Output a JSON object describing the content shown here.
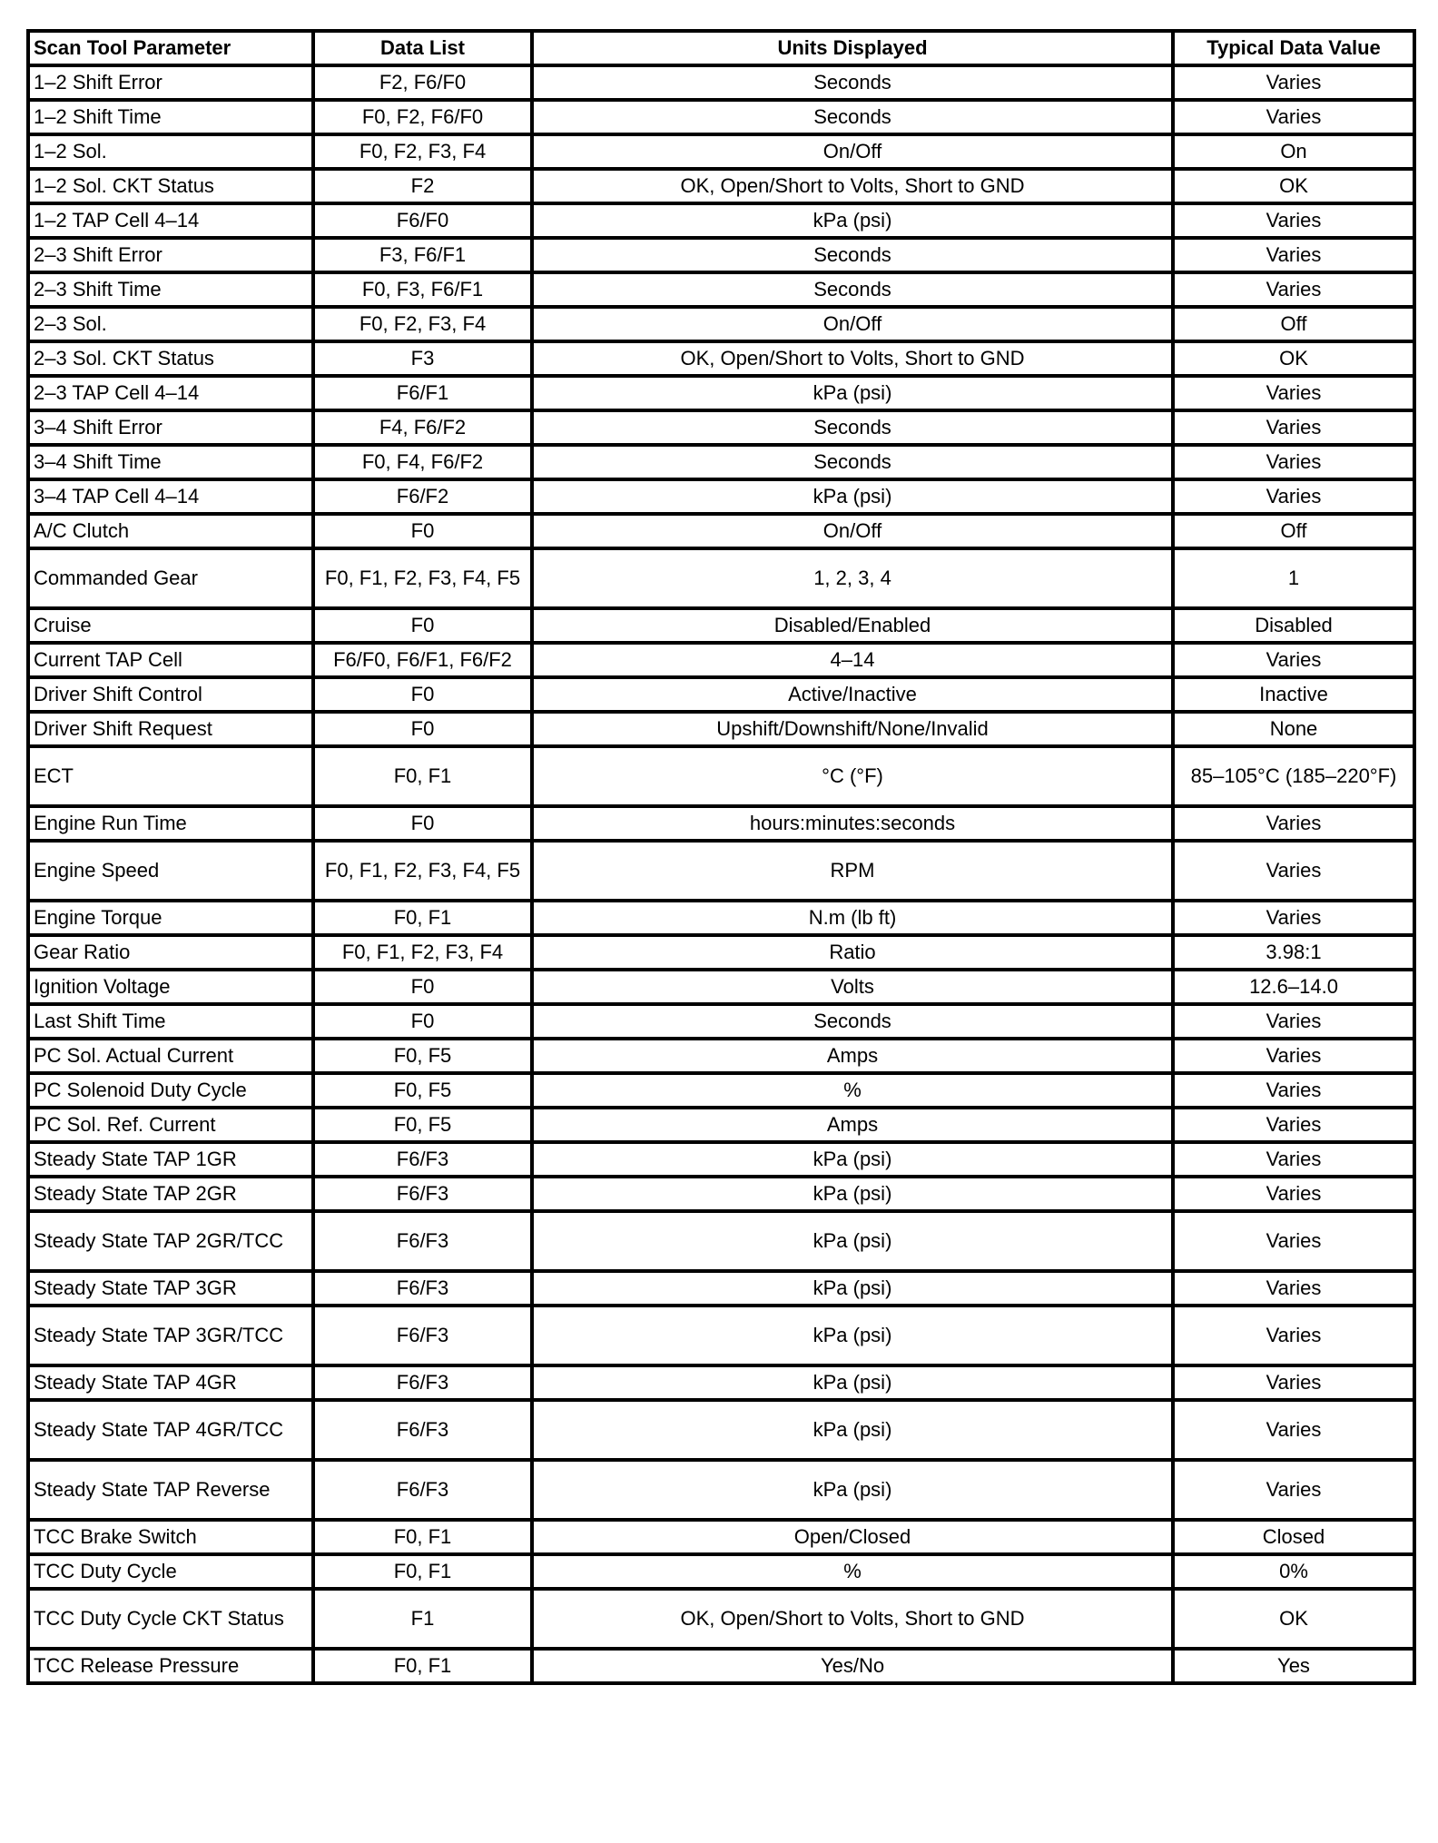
{
  "table": {
    "headers": [
      "Scan Tool Parameter",
      "Data List",
      "Units Displayed",
      "Typical Data Value"
    ],
    "rows": [
      [
        "1–2 Shift Error",
        "F2, F6/F0",
        "Seconds",
        "Varies"
      ],
      [
        "1–2 Shift Time",
        "F0, F2, F6/F0",
        "Seconds",
        "Varies"
      ],
      [
        "1–2 Sol.",
        "F0, F2, F3, F4",
        "On/Off",
        "On"
      ],
      [
        "1–2 Sol. CKT Status",
        "F2",
        "OK, Open/Short to Volts, Short to GND",
        "OK"
      ],
      [
        "1–2 TAP Cell 4–14",
        "F6/F0",
        "kPa (psi)",
        "Varies"
      ],
      [
        "2–3 Shift Error",
        "F3, F6/F1",
        "Seconds",
        "Varies"
      ],
      [
        "2–3 Shift Time",
        "F0, F3, F6/F1",
        "Seconds",
        "Varies"
      ],
      [
        "2–3 Sol.",
        "F0, F2, F3, F4",
        "On/Off",
        "Off"
      ],
      [
        "2–3 Sol. CKT Status",
        "F3",
        "OK, Open/Short to Volts, Short to GND",
        "OK"
      ],
      [
        "2–3 TAP Cell 4–14",
        "F6/F1",
        "kPa (psi)",
        "Varies"
      ],
      [
        "3–4 Shift Error",
        "F4, F6/F2",
        "Seconds",
        "Varies"
      ],
      [
        "3–4 Shift Time",
        "F0, F4, F6/F2",
        "Seconds",
        "Varies"
      ],
      [
        "3–4 TAP Cell 4–14",
        "F6/F2",
        "kPa (psi)",
        "Varies"
      ],
      [
        "A/C Clutch",
        "F0",
        "On/Off",
        "Off"
      ],
      [
        "Commanded Gear",
        "F0, F1, F2, F3, F4, F5",
        "1, 2, 3, 4",
        "1"
      ],
      [
        "Cruise",
        "F0",
        "Disabled/Enabled",
        "Disabled"
      ],
      [
        "Current TAP Cell",
        "F6/F0, F6/F1, F6/F2",
        "4–14",
        "Varies"
      ],
      [
        "Driver Shift Control",
        "F0",
        "Active/Inactive",
        "Inactive"
      ],
      [
        "Driver Shift Request",
        "F0",
        "Upshift/Downshift/None/Invalid",
        "None"
      ],
      [
        "ECT",
        "F0, F1",
        "°C (°F)",
        "85–105°C (185–220°F)"
      ],
      [
        "Engine Run Time",
        "F0",
        "hours:minutes:seconds",
        "Varies"
      ],
      [
        "Engine Speed",
        "F0, F1, F2, F3, F4, F5",
        "RPM",
        "Varies"
      ],
      [
        "Engine Torque",
        "F0, F1",
        "N.m (lb ft)",
        "Varies"
      ],
      [
        "Gear Ratio",
        "F0, F1, F2, F3, F4",
        "Ratio",
        "3.98:1"
      ],
      [
        "Ignition Voltage",
        "F0",
        "Volts",
        "12.6–14.0"
      ],
      [
        "Last Shift Time",
        "F0",
        "Seconds",
        "Varies"
      ],
      [
        "PC Sol. Actual Current",
        "F0, F5",
        "Amps",
        "Varies"
      ],
      [
        "PC Solenoid Duty Cycle",
        "F0, F5",
        "%",
        "Varies"
      ],
      [
        "PC Sol. Ref. Current",
        "F0, F5",
        "Amps",
        "Varies"
      ],
      [
        "Steady State TAP 1GR",
        "F6/F3",
        "kPa (psi)",
        "Varies"
      ],
      [
        "Steady State TAP 2GR",
        "F6/F3",
        "kPa (psi)",
        "Varies"
      ],
      [
        "Steady State TAP 2GR/TCC",
        "F6/F3",
        "kPa (psi)",
        "Varies"
      ],
      [
        "Steady State TAP 3GR",
        "F6/F3",
        "kPa (psi)",
        "Varies"
      ],
      [
        "Steady State TAP 3GR/TCC",
        "F6/F3",
        "kPa (psi)",
        "Varies"
      ],
      [
        "Steady State TAP 4GR",
        "F6/F3",
        "kPa (psi)",
        "Varies"
      ],
      [
        "Steady State TAP 4GR/TCC",
        "F6/F3",
        "kPa (psi)",
        "Varies"
      ],
      [
        "Steady State TAP Reverse",
        "F6/F3",
        "kPa (psi)",
        "Varies"
      ],
      [
        "TCC Brake Switch",
        "F0, F1",
        "Open/Closed",
        "Closed"
      ],
      [
        "TCC Duty Cycle",
        "F0, F1",
        "%",
        "0%"
      ],
      [
        "TCC Duty Cycle CKT Status",
        "F1",
        "OK, Open/Short to Volts, Short to GND",
        "OK"
      ],
      [
        "TCC Release Pressure",
        "F0, F1",
        "Yes/No",
        "Yes"
      ]
    ]
  }
}
